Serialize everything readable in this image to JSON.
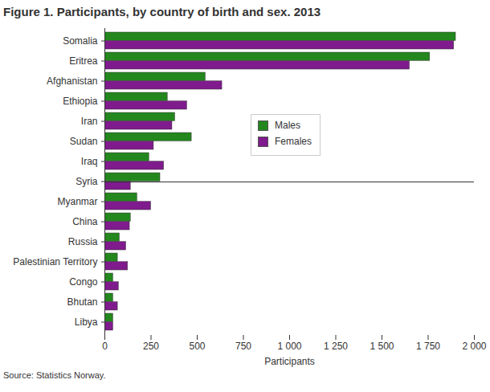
{
  "chart_data": {
    "type": "bar",
    "orientation": "horizontal",
    "title": "Figure 1. Participants, by country of birth and sex. 2013",
    "caption": "Source: Statistics Norway.",
    "xlabel": "Participants",
    "categories": [
      "Libya",
      "Bhutan",
      "Congo",
      "Palestinian Territory",
      "Russia",
      "China",
      "Myanmar",
      "Syria",
      "Iraq",
      "Sudan",
      "Iran",
      "Ethiopia",
      "Afghanistan",
      "Eritrea",
      "Somalia"
    ],
    "series": [
      {
        "name": "Males",
        "color": "#23871e",
        "values": [
          45,
          45,
          45,
          70,
          80,
          140,
          175,
          300,
          240,
          470,
          380,
          340,
          545,
          1760,
          1900
        ]
      },
      {
        "name": "Females",
        "color": "#7f1b8c",
        "values": [
          45,
          70,
          75,
          125,
          115,
          135,
          250,
          140,
          320,
          265,
          365,
          445,
          635,
          1650,
          1890
        ]
      }
    ],
    "xlim": [
      0,
      2000
    ],
    "xticks": [
      0,
      250,
      500,
      750,
      {
        "value": 1000,
        "label": "1 000"
      },
      {
        "value": 1250,
        "label": "1 250"
      },
      {
        "value": 1500,
        "label": "1 500"
      },
      {
        "value": 1750,
        "label": "1 750"
      },
      {
        "value": 2000,
        "label": "2 000"
      }
    ],
    "grid": false,
    "legend": "right"
  }
}
